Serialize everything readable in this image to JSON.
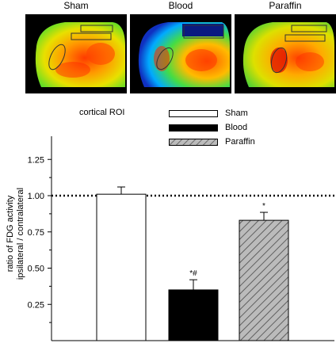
{
  "panels": [
    {
      "title": "Sham"
    },
    {
      "title": "Blood"
    },
    {
      "title": "Paraffin"
    }
  ],
  "roi_label": "cortical ROI",
  "colors": {
    "sham": "#ffffff",
    "blood": "#000000",
    "paraffin": "#bbbbbb",
    "hatch": "#555555"
  },
  "chart_data": {
    "type": "bar",
    "categories": [
      "Sham",
      "Blood",
      "Paraffin"
    ],
    "values": [
      1.01,
      0.35,
      0.83
    ],
    "errors": [
      0.05,
      0.07,
      0.055
    ],
    "annotations": [
      "",
      "*#",
      "*"
    ],
    "ylabel_line1": "ratio of FDG activity",
    "ylabel_line2": "ipsilateral / contralateral",
    "yticks": [
      "1.25",
      "1.00",
      "0.75",
      "0.50",
      "0.25"
    ],
    "ylim": [
      0.0,
      1.4
    ],
    "reference_line": 1.0,
    "legend": [
      "Sham",
      "Blood",
      "Paraffin"
    ],
    "legend_position": "top-right"
  }
}
